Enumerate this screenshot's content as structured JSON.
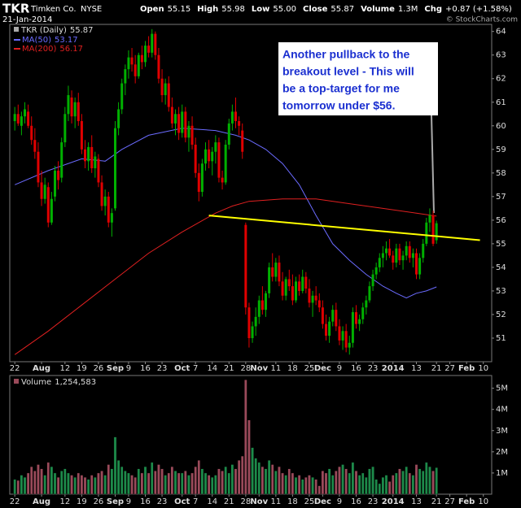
{
  "header": {
    "symbol": "TKR",
    "name": "Timken Co.",
    "exchange": "NYSE",
    "date": "21-Jan-2014",
    "quote": [
      {
        "label": "Open",
        "value": "55.15"
      },
      {
        "label": "High",
        "value": "55.98"
      },
      {
        "label": "Low",
        "value": "55.00"
      },
      {
        "label": "Close",
        "value": "55.87"
      },
      {
        "label": "Volume",
        "value": "1.3M"
      },
      {
        "label": "Chg",
        "value": "+0.87 (+1.58%)"
      }
    ],
    "credit": "© StockCharts.com"
  },
  "chart_data": {
    "type": "candlestick",
    "name": "TKR (Daily)",
    "legend_value": "55.87",
    "up_color": "#00b000",
    "down_color": "#e00000",
    "x": [
      0,
      1,
      2,
      3,
      4,
      5,
      6,
      7,
      8,
      9,
      10,
      11,
      12,
      13,
      14,
      15,
      16,
      17,
      18,
      19,
      20,
      21,
      22,
      23,
      24,
      25,
      26,
      27,
      28,
      29,
      30,
      31,
      32,
      33,
      34,
      35,
      36,
      37,
      38,
      39,
      40,
      41,
      42,
      43,
      44,
      45,
      46,
      47,
      48,
      49,
      50,
      51,
      52,
      53,
      54,
      55,
      56,
      57,
      58,
      59,
      60,
      61,
      62,
      63,
      64,
      65,
      66,
      67,
      68,
      69,
      70,
      71,
      72,
      73,
      74,
      75,
      76,
      77,
      78,
      79,
      80,
      81,
      82,
      83,
      84,
      85,
      86,
      87,
      88,
      89,
      90,
      91,
      92,
      93,
      94,
      95,
      96,
      97,
      98,
      99,
      100,
      101,
      102,
      103,
      104,
      105,
      106,
      107,
      108,
      109,
      110,
      111,
      112,
      113,
      114,
      115,
      116,
      117,
      118,
      119,
      120,
      121,
      122,
      123,
      124,
      125,
      126
    ],
    "ohlc": [
      [
        60.2,
        60.8,
        59.8,
        60.5
      ],
      [
        60.5,
        60.9,
        60.0,
        60.1
      ],
      [
        60.0,
        60.6,
        59.6,
        60.4
      ],
      [
        60.4,
        61.0,
        60.1,
        60.7
      ],
      [
        60.6,
        60.9,
        59.9,
        60.0
      ],
      [
        60.0,
        60.4,
        59.2,
        59.4
      ],
      [
        59.4,
        59.9,
        58.6,
        58.9
      ],
      [
        58.9,
        59.3,
        57.4,
        57.6
      ],
      [
        57.6,
        58.1,
        56.6,
        56.9
      ],
      [
        56.9,
        57.8,
        56.7,
        57.5
      ],
      [
        57.4,
        57.6,
        55.7,
        55.9
      ],
      [
        55.9,
        57.2,
        55.8,
        56.9
      ],
      [
        57.0,
        58.3,
        56.8,
        58.1
      ],
      [
        58.1,
        58.5,
        57.3,
        57.7
      ],
      [
        57.8,
        59.5,
        57.6,
        59.3
      ],
      [
        59.3,
        60.8,
        59.1,
        60.5
      ],
      [
        60.5,
        61.7,
        60.2,
        61.3
      ],
      [
        61.2,
        61.5,
        60.1,
        60.4
      ],
      [
        60.4,
        61.2,
        59.9,
        61.0
      ],
      [
        61.0,
        61.4,
        60.0,
        60.2
      ],
      [
        60.2,
        60.5,
        58.8,
        59.0
      ],
      [
        59.0,
        59.4,
        58.2,
        58.5
      ],
      [
        58.5,
        59.3,
        58.1,
        59.1
      ],
      [
        59.1,
        59.6,
        58.0,
        58.2
      ],
      [
        58.2,
        58.9,
        57.8,
        58.7
      ],
      [
        58.6,
        58.8,
        57.4,
        57.6
      ],
      [
        57.6,
        57.9,
        56.4,
        56.6
      ],
      [
        56.6,
        57.3,
        56.2,
        57.0
      ],
      [
        57.0,
        57.2,
        55.7,
        55.9
      ],
      [
        55.9,
        56.5,
        55.3,
        56.3
      ],
      [
        56.5,
        60.2,
        56.4,
        59.9
      ],
      [
        59.9,
        61.0,
        59.6,
        60.7
      ],
      [
        60.7,
        62.0,
        60.5,
        61.8
      ],
      [
        61.8,
        62.6,
        61.3,
        62.4
      ],
      [
        62.4,
        63.2,
        62.0,
        62.9
      ],
      [
        62.9,
        63.3,
        62.3,
        62.6
      ],
      [
        62.6,
        63.0,
        61.8,
        62.1
      ],
      [
        62.1,
        63.1,
        62.0,
        63.0
      ],
      [
        63.0,
        63.4,
        62.4,
        62.7
      ],
      [
        62.7,
        63.6,
        62.5,
        63.4
      ],
      [
        63.4,
        63.8,
        62.9,
        63.1
      ],
      [
        63.1,
        64.1,
        62.9,
        63.9
      ],
      [
        63.9,
        64.0,
        62.8,
        63.0
      ],
      [
        63.0,
        63.3,
        61.8,
        62.0
      ],
      [
        62.0,
        62.4,
        61.0,
        61.3
      ],
      [
        61.3,
        62.0,
        60.9,
        61.8
      ],
      [
        61.8,
        62.1,
        60.6,
        60.8
      ],
      [
        60.8,
        61.2,
        59.9,
        60.1
      ],
      [
        60.1,
        60.7,
        59.6,
        60.5
      ],
      [
        60.5,
        60.8,
        59.4,
        59.7
      ],
      [
        59.7,
        60.9,
        59.5,
        60.6
      ],
      [
        60.6,
        60.8,
        59.3,
        59.5
      ],
      [
        59.5,
        60.2,
        58.9,
        60.0
      ],
      [
        60.0,
        60.4,
        59.0,
        59.2
      ],
      [
        59.2,
        59.5,
        57.8,
        58.0
      ],
      [
        58.0,
        58.4,
        56.8,
        57.2
      ],
      [
        57.2,
        58.6,
        57.0,
        58.4
      ],
      [
        58.4,
        59.3,
        58.1,
        59.0
      ],
      [
        59.0,
        59.4,
        58.2,
        58.5
      ],
      [
        58.5,
        59.1,
        57.9,
        58.9
      ],
      [
        58.9,
        59.6,
        58.4,
        59.3
      ],
      [
        59.3,
        59.5,
        57.6,
        57.8
      ],
      [
        57.8,
        58.1,
        57.3,
        57.6
      ],
      [
        57.6,
        59.4,
        57.5,
        59.2
      ],
      [
        59.2,
        60.3,
        59.0,
        60.1
      ],
      [
        60.1,
        60.9,
        59.8,
        60.6
      ],
      [
        60.6,
        61.2,
        59.9,
        60.2
      ],
      [
        60.2,
        60.4,
        59.6,
        60.0
      ],
      [
        59.8,
        60.1,
        58.6,
        58.9
      ],
      [
        55.8,
        55.9,
        52.0,
        52.3
      ],
      [
        52.3,
        52.5,
        50.6,
        51.0
      ],
      [
        51.0,
        51.7,
        50.8,
        51.5
      ],
      [
        51.5,
        52.3,
        51.1,
        51.9
      ],
      [
        51.9,
        52.8,
        51.6,
        52.6
      ],
      [
        52.6,
        53.2,
        52.0,
        52.2
      ],
      [
        52.2,
        53.0,
        51.9,
        52.9
      ],
      [
        52.9,
        54.2,
        52.7,
        54.0
      ],
      [
        54.0,
        54.6,
        53.4,
        53.6
      ],
      [
        53.6,
        54.4,
        53.4,
        54.2
      ],
      [
        54.2,
        54.5,
        53.2,
        53.4
      ],
      [
        53.4,
        53.8,
        52.6,
        52.8
      ],
      [
        52.8,
        53.6,
        52.6,
        53.5
      ],
      [
        53.5,
        53.9,
        53.0,
        53.2
      ],
      [
        53.2,
        53.7,
        52.4,
        52.6
      ],
      [
        52.6,
        53.6,
        52.5,
        53.4
      ],
      [
        53.4,
        53.7,
        52.8,
        53.0
      ],
      [
        53.0,
        53.9,
        52.9,
        53.6
      ],
      [
        53.6,
        53.8,
        52.9,
        53.1
      ],
      [
        53.1,
        53.5,
        52.3,
        52.5
      ],
      [
        52.5,
        53.0,
        51.9,
        52.8
      ],
      [
        52.8,
        53.2,
        52.4,
        52.6
      ],
      [
        52.6,
        52.9,
        52.1,
        52.3
      ],
      [
        52.3,
        52.6,
        51.4,
        51.6
      ],
      [
        51.6,
        52.0,
        50.9,
        51.1
      ],
      [
        51.1,
        51.9,
        50.8,
        51.7
      ],
      [
        51.7,
        52.4,
        51.5,
        52.2
      ],
      [
        52.2,
        52.5,
        51.3,
        51.5
      ],
      [
        51.5,
        51.8,
        50.7,
        50.9
      ],
      [
        50.9,
        51.5,
        50.5,
        51.3
      ],
      [
        51.3,
        51.6,
        50.4,
        50.6
      ],
      [
        50.6,
        51.1,
        50.3,
        50.8
      ],
      [
        50.8,
        52.3,
        50.6,
        52.1
      ],
      [
        52.1,
        52.4,
        51.4,
        51.6
      ],
      [
        51.6,
        52.0,
        51.3,
        51.8
      ],
      [
        51.8,
        52.5,
        51.6,
        52.3
      ],
      [
        52.3,
        52.8,
        52.0,
        52.6
      ],
      [
        52.6,
        53.4,
        52.5,
        53.2
      ],
      [
        53.2,
        53.9,
        53.0,
        53.7
      ],
      [
        53.7,
        54.2,
        53.5,
        54.0
      ],
      [
        54.0,
        54.6,
        53.8,
        54.4
      ],
      [
        54.4,
        54.9,
        54.0,
        54.6
      ],
      [
        54.6,
        55.1,
        54.3,
        54.8
      ],
      [
        54.8,
        55.2,
        54.4,
        54.5
      ],
      [
        54.5,
        54.7,
        53.9,
        54.2
      ],
      [
        54.2,
        55.0,
        54.0,
        54.8
      ],
      [
        54.8,
        55.0,
        54.1,
        54.3
      ],
      [
        54.3,
        54.7,
        53.9,
        54.5
      ],
      [
        54.5,
        55.1,
        54.3,
        54.9
      ],
      [
        54.9,
        55.1,
        54.2,
        54.4
      ],
      [
        54.4,
        54.8,
        54.0,
        54.6
      ],
      [
        54.6,
        54.8,
        53.5,
        53.7
      ],
      [
        53.7,
        54.6,
        53.5,
        54.4
      ],
      [
        54.4,
        55.2,
        54.2,
        55.0
      ],
      [
        55.0,
        56.1,
        54.9,
        55.9
      ],
      [
        55.9,
        56.5,
        55.5,
        56.2
      ],
      [
        56.2,
        56.4,
        54.9,
        55.0
      ],
      [
        55.15,
        55.98,
        55.0,
        55.87
      ]
    ],
    "xlim": [
      -1.5,
      142.5
    ],
    "xticks": [
      {
        "value": 0,
        "label": "22"
      },
      {
        "value": 8,
        "label": "Aug"
      },
      {
        "value": 15,
        "label": "12"
      },
      {
        "value": 20,
        "label": "19"
      },
      {
        "value": 25,
        "label": "26"
      },
      {
        "value": 30,
        "label": "Sep"
      },
      {
        "value": 34,
        "label": "9"
      },
      {
        "value": 39,
        "label": "16"
      },
      {
        "value": 44,
        "label": "23"
      },
      {
        "value": 50,
        "label": "Oct"
      },
      {
        "value": 54,
        "label": "7"
      },
      {
        "value": 59,
        "label": "14"
      },
      {
        "value": 64,
        "label": "21"
      },
      {
        "value": 69,
        "label": "28"
      },
      {
        "value": 73,
        "label": "Nov"
      },
      {
        "value": 78,
        "label": "11"
      },
      {
        "value": 83,
        "label": "18"
      },
      {
        "value": 88,
        "label": "25"
      },
      {
        "value": 92,
        "label": "Dec"
      },
      {
        "value": 97,
        "label": "9"
      },
      {
        "value": 102,
        "label": "16"
      },
      {
        "value": 107,
        "label": "23"
      },
      {
        "value": 113,
        "label": "2014"
      },
      {
        "value": 120,
        "label": "13"
      },
      {
        "value": 126,
        "label": "21"
      },
      {
        "value": 130,
        "label": "27"
      },
      {
        "value": 135,
        "label": "Feb"
      },
      {
        "value": 140,
        "label": "10"
      }
    ],
    "ylim": [
      50,
      64.3
    ],
    "yticks": [
      51,
      52,
      53,
      54,
      55,
      56,
      57,
      58,
      59,
      60,
      61,
      62,
      63,
      64
    ],
    "overlays": [
      {
        "name": "MA(50)",
        "legend_value": "53.17",
        "color": "#6b6bff",
        "x": [
          0,
          10,
          20,
          27,
          32,
          40,
          50,
          60,
          66,
          70,
          75,
          80,
          85,
          90,
          95,
          100,
          105,
          110,
          114,
          117,
          120,
          123,
          126
        ],
        "values": [
          57.5,
          58.1,
          58.6,
          58.5,
          59.0,
          59.6,
          59.9,
          59.8,
          59.6,
          59.4,
          59.0,
          58.4,
          57.5,
          56.2,
          55.0,
          54.3,
          53.7,
          53.2,
          52.9,
          52.7,
          52.9,
          53.0,
          53.17
        ]
      },
      {
        "name": "MA(200)",
        "legend_value": "56.17",
        "color": "#e02020",
        "x": [
          0,
          10,
          20,
          30,
          40,
          50,
          60,
          65,
          70,
          80,
          90,
          100,
          110,
          120,
          126
        ],
        "values": [
          50.3,
          51.3,
          52.4,
          53.5,
          54.6,
          55.5,
          56.3,
          56.6,
          56.8,
          56.9,
          56.9,
          56.7,
          56.5,
          56.3,
          56.17
        ]
      }
    ],
    "trendline": {
      "color": "#ffff00",
      "x": [
        58,
        139
      ],
      "values": [
        56.2,
        55.15
      ]
    },
    "annotation": {
      "lines": [
        "Another pullback to the",
        "breakout level - This will",
        "be a top-target for me",
        "tomorrow under $56."
      ]
    },
    "volume": {
      "name": "Volume",
      "legend_value": "1,254,583",
      "values": [
        700000,
        650000,
        900000,
        800000,
        1000000,
        1300000,
        1100000,
        1400000,
        1200000,
        900000,
        1500000,
        1300000,
        1000000,
        800000,
        1100000,
        1200000,
        1000000,
        900000,
        800000,
        1000000,
        900000,
        800000,
        700000,
        900000,
        800000,
        1000000,
        1100000,
        900000,
        1400000,
        1200000,
        2700000,
        1600000,
        1300000,
        1100000,
        1000000,
        900000,
        800000,
        1200000,
        1000000,
        1300000,
        1000000,
        1500000,
        1100000,
        1400000,
        1200000,
        900000,
        1000000,
        1300000,
        1100000,
        1000000,
        1000000,
        1100000,
        900000,
        1000000,
        1300000,
        1600000,
        1200000,
        1000000,
        900000,
        800000,
        900000,
        1200000,
        1100000,
        1300000,
        1000000,
        1400000,
        1200000,
        1600000,
        1800000,
        5400000,
        3500000,
        2200000,
        1700000,
        1500000,
        1300000,
        1200000,
        1600000,
        1400000,
        1100000,
        1300000,
        1000000,
        900000,
        1200000,
        1000000,
        800000,
        900000,
        700000,
        800000,
        900000,
        800000,
        700000,
        400000,
        1100000,
        1000000,
        1200000,
        900000,
        1100000,
        1300000,
        1400000,
        1200000,
        1000000,
        1500000,
        1100000,
        900000,
        1000000,
        800000,
        1200000,
        1300000,
        700000,
        500000,
        800000,
        900000,
        600000,
        900000,
        1000000,
        1200000,
        1100000,
        1300000,
        1000000,
        900000,
        1400000,
        1200000,
        1100000,
        1500000,
        1300000,
        1100000,
        1254583
      ],
      "ylim": [
        0,
        5600000
      ],
      "yticks": [
        {
          "value": 1000000,
          "label": "1M"
        },
        {
          "value": 2000000,
          "label": "2M"
        },
        {
          "value": 3000000,
          "label": "3M"
        },
        {
          "value": 4000000,
          "label": "4M"
        },
        {
          "value": 5000000,
          "label": "5M"
        }
      ]
    }
  }
}
